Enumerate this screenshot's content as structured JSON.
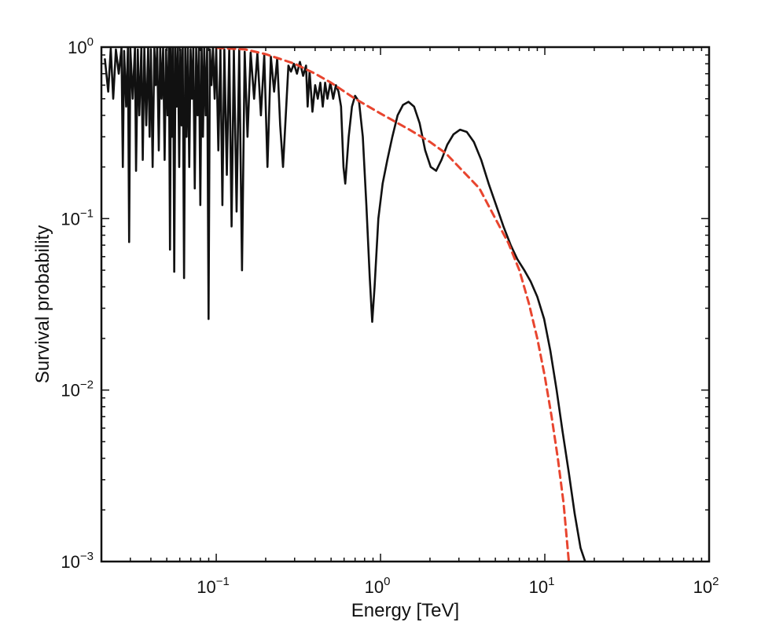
{
  "chart_data": {
    "type": "line",
    "xlabel": "Energy [TeV]",
    "ylabel": "Survival probability",
    "xscale": "log",
    "yscale": "log",
    "xlim": [
      0.02,
      100
    ],
    "ylim": [
      0.001,
      1
    ],
    "grid": false,
    "legend": "none",
    "x_ticks": [
      {
        "value": 0.1,
        "base": "10",
        "exp": "−1"
      },
      {
        "value": 1,
        "base": "10",
        "exp": "0"
      },
      {
        "value": 10,
        "base": "10",
        "exp": "1"
      },
      {
        "value": 100,
        "base": "10",
        "exp": "2"
      }
    ],
    "y_ticks": [
      {
        "value": 0.001,
        "base": "10",
        "exp": "−3"
      },
      {
        "value": 0.01,
        "base": "10",
        "exp": "−2"
      },
      {
        "value": 0.1,
        "base": "10",
        "exp": "−1"
      },
      {
        "value": 1,
        "base": "10",
        "exp": "0"
      }
    ],
    "series": [
      {
        "style": "solid",
        "color": "#111111",
        "points": [
          [
            0.021,
            0.85
          ],
          [
            0.022,
            0.55
          ],
          [
            0.0228,
            0.98
          ],
          [
            0.0236,
            0.5
          ],
          [
            0.0245,
            0.97
          ],
          [
            0.0255,
            0.7
          ],
          [
            0.0265,
            0.99
          ],
          [
            0.027,
            0.2
          ],
          [
            0.0275,
            0.95
          ],
          [
            0.0283,
            0.45
          ],
          [
            0.029,
            0.99
          ],
          [
            0.0295,
            0.073
          ],
          [
            0.03,
            0.98
          ],
          [
            0.031,
            0.5
          ],
          [
            0.032,
            0.99
          ],
          [
            0.0325,
            0.19
          ],
          [
            0.0333,
            0.97
          ],
          [
            0.034,
            0.4
          ],
          [
            0.035,
            0.99
          ],
          [
            0.0357,
            0.22
          ],
          [
            0.0365,
            0.98
          ],
          [
            0.0375,
            0.35
          ],
          [
            0.0385,
            0.99
          ],
          [
            0.0393,
            0.3
          ],
          [
            0.04,
            0.97
          ],
          [
            0.041,
            0.2
          ],
          [
            0.042,
            0.98
          ],
          [
            0.0428,
            0.6
          ],
          [
            0.0437,
            0.99
          ],
          [
            0.0447,
            0.25
          ],
          [
            0.0456,
            0.98
          ],
          [
            0.0465,
            0.5
          ],
          [
            0.0475,
            0.99
          ],
          [
            0.0485,
            0.22
          ],
          [
            0.0495,
            0.97
          ],
          [
            0.0505,
            0.4
          ],
          [
            0.0515,
            0.99
          ],
          [
            0.0523,
            0.066
          ],
          [
            0.053,
            0.98
          ],
          [
            0.0538,
            0.3
          ],
          [
            0.0547,
            0.99
          ],
          [
            0.0555,
            0.049
          ],
          [
            0.0565,
            0.98
          ],
          [
            0.0575,
            0.45
          ],
          [
            0.0585,
            0.99
          ],
          [
            0.0595,
            0.2
          ],
          [
            0.0605,
            0.97
          ],
          [
            0.0615,
            0.35
          ],
          [
            0.0625,
            0.99
          ],
          [
            0.0637,
            0.045
          ],
          [
            0.0648,
            0.98
          ],
          [
            0.066,
            0.3
          ],
          [
            0.0672,
            0.99
          ],
          [
            0.0685,
            0.2
          ],
          [
            0.0698,
            0.97
          ],
          [
            0.0712,
            0.5
          ],
          [
            0.0725,
            0.99
          ],
          [
            0.074,
            0.15
          ],
          [
            0.0755,
            0.98
          ],
          [
            0.077,
            0.4
          ],
          [
            0.0785,
            0.99
          ],
          [
            0.08,
            0.12
          ],
          [
            0.0815,
            0.98
          ],
          [
            0.083,
            0.3
          ],
          [
            0.0845,
            0.99
          ],
          [
            0.0862,
            0.4
          ],
          [
            0.088,
            0.98
          ],
          [
            0.0898,
            0.026
          ],
          [
            0.0915,
            0.97
          ],
          [
            0.0935,
            0.6
          ],
          [
            0.0955,
            0.99
          ],
          [
            0.0978,
            0.5
          ],
          [
            0.1,
            0.98
          ],
          [
            0.103,
            0.25
          ],
          [
            0.106,
            0.98
          ],
          [
            0.109,
            0.12
          ],
          [
            0.112,
            0.97
          ],
          [
            0.116,
            0.18
          ],
          [
            0.12,
            0.98
          ],
          [
            0.124,
            0.09
          ],
          [
            0.128,
            0.96
          ],
          [
            0.133,
            0.11
          ],
          [
            0.138,
            0.97
          ],
          [
            0.1435,
            0.05
          ],
          [
            0.149,
            0.94
          ],
          [
            0.155,
            0.3
          ],
          [
            0.162,
            0.93
          ],
          [
            0.17,
            0.5
          ],
          [
            0.178,
            0.92
          ],
          [
            0.187,
            0.4
          ],
          [
            0.196,
            0.9
          ],
          [
            0.205,
            0.2
          ],
          [
            0.215,
            0.88
          ],
          [
            0.225,
            0.55
          ],
          [
            0.235,
            0.86
          ],
          [
            0.245,
            0.35
          ],
          [
            0.255,
            0.2
          ],
          [
            0.265,
            0.4
          ],
          [
            0.275,
            0.78
          ],
          [
            0.285,
            0.72
          ],
          [
            0.297,
            0.8
          ],
          [
            0.31,
            0.7
          ],
          [
            0.323,
            0.82
          ],
          [
            0.338,
            0.68
          ],
          [
            0.352,
            0.78
          ],
          [
            0.36,
            0.45
          ],
          [
            0.37,
            0.72
          ],
          [
            0.385,
            0.42
          ],
          [
            0.4,
            0.6
          ],
          [
            0.415,
            0.5
          ],
          [
            0.43,
            0.62
          ],
          [
            0.445,
            0.45
          ],
          [
            0.46,
            0.62
          ],
          [
            0.475,
            0.5
          ],
          [
            0.495,
            0.62
          ],
          [
            0.515,
            0.5
          ],
          [
            0.535,
            0.6
          ],
          [
            0.555,
            0.55
          ],
          [
            0.575,
            0.45
          ],
          [
            0.595,
            0.2
          ],
          [
            0.61,
            0.16
          ],
          [
            0.64,
            0.3
          ],
          [
            0.67,
            0.45
          ],
          [
            0.7,
            0.52
          ],
          [
            0.74,
            0.48
          ],
          [
            0.78,
            0.3
          ],
          [
            0.82,
            0.12
          ],
          [
            0.86,
            0.045
          ],
          [
            0.89,
            0.025
          ],
          [
            0.92,
            0.04
          ],
          [
            0.97,
            0.1
          ],
          [
            1.03,
            0.16
          ],
          [
            1.1,
            0.22
          ],
          [
            1.18,
            0.3
          ],
          [
            1.27,
            0.4
          ],
          [
            1.37,
            0.46
          ],
          [
            1.48,
            0.48
          ],
          [
            1.6,
            0.45
          ],
          [
            1.73,
            0.36
          ],
          [
            1.87,
            0.25
          ],
          [
            2.02,
            0.2
          ],
          [
            2.18,
            0.19
          ],
          [
            2.35,
            0.22
          ],
          [
            2.55,
            0.27
          ],
          [
            2.78,
            0.31
          ],
          [
            3.05,
            0.33
          ],
          [
            3.35,
            0.32
          ],
          [
            3.7,
            0.28
          ],
          [
            4.1,
            0.22
          ],
          [
            4.55,
            0.16
          ],
          [
            5.05,
            0.12
          ],
          [
            5.6,
            0.09
          ],
          [
            6.2,
            0.07
          ],
          [
            6.8,
            0.058
          ],
          [
            7.5,
            0.05
          ],
          [
            8.2,
            0.043
          ],
          [
            9.0,
            0.035
          ],
          [
            9.9,
            0.026
          ],
          [
            10.8,
            0.017
          ],
          [
            11.8,
            0.01
          ],
          [
            12.8,
            0.0058
          ],
          [
            14.0,
            0.0033
          ],
          [
            15.2,
            0.0019
          ],
          [
            16.5,
            0.0012
          ],
          [
            17.6,
            0.001
          ]
        ]
      },
      {
        "style": "dashed",
        "color": "#e8452f",
        "points": [
          [
            0.1,
            0.99
          ],
          [
            0.15,
            0.97
          ],
          [
            0.2,
            0.91
          ],
          [
            0.3,
            0.8
          ],
          [
            0.4,
            0.7
          ],
          [
            0.5,
            0.62
          ],
          [
            0.7,
            0.5
          ],
          [
            1.0,
            0.41
          ],
          [
            1.5,
            0.33
          ],
          [
            2.0,
            0.28
          ],
          [
            2.5,
            0.24
          ],
          [
            3.0,
            0.2
          ],
          [
            4.0,
            0.15
          ],
          [
            5.0,
            0.1
          ],
          [
            6.0,
            0.072
          ],
          [
            7.0,
            0.05
          ],
          [
            8.0,
            0.032
          ],
          [
            9.0,
            0.02
          ],
          [
            10.0,
            0.012
          ],
          [
            11.0,
            0.007
          ],
          [
            12.0,
            0.004
          ],
          [
            13.0,
            0.0022
          ],
          [
            14.0,
            0.001
          ]
        ]
      }
    ]
  }
}
